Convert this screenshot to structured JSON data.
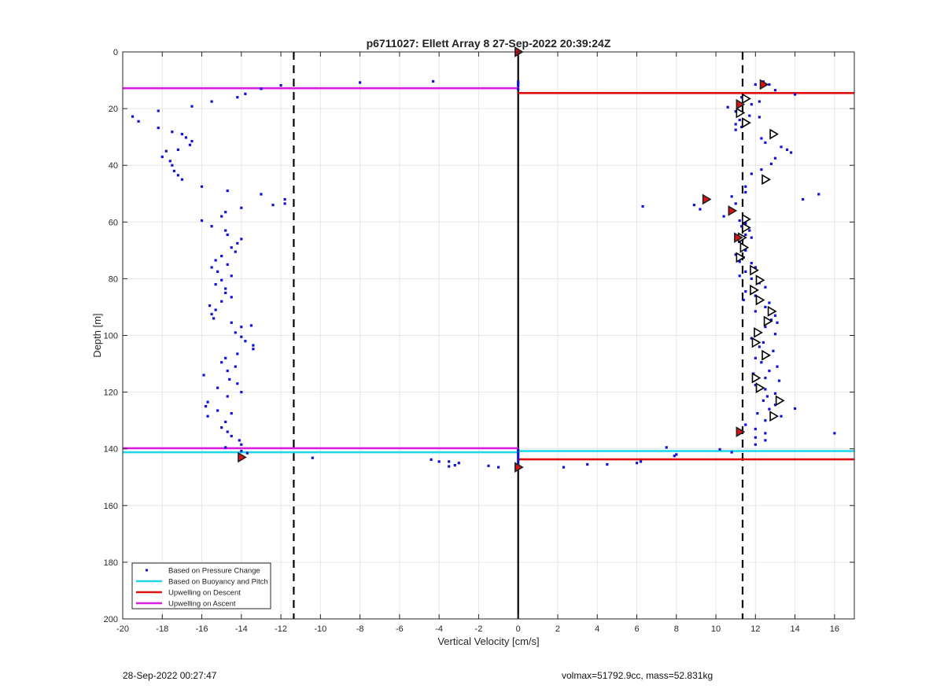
{
  "chart_data": {
    "type": "scatter",
    "title": "p6711027: Ellett Array 8 27-Sep-2022 20:39:24Z",
    "xlabel": "Vertical Velocity [cm/s]",
    "ylabel": "Depth [m]",
    "xlim": [
      -20,
      17
    ],
    "ylim": [
      0,
      200
    ],
    "y_reversed": true,
    "grid": true,
    "x_ticks": [
      -20,
      -18,
      -16,
      -14,
      -12,
      -10,
      -8,
      -6,
      -4,
      -2,
      0,
      2,
      4,
      6,
      8,
      10,
      12,
      14,
      16
    ],
    "y_ticks": [
      0,
      20,
      40,
      60,
      80,
      100,
      120,
      140,
      160,
      180,
      200
    ],
    "legend": {
      "placement": "bottom-left",
      "entries": [
        {
          "label": "Based on Pressure Change",
          "color": "#1010e0",
          "style": "dot"
        },
        {
          "label": "Based on Buoyancy and Pitch",
          "color": "#22d8e8",
          "style": "line"
        },
        {
          "label": "Upwelling on Descent",
          "color": "#dd1111",
          "style": "line"
        },
        {
          "label": "Upwelling on Ascent",
          "color": "#d81ee0",
          "style": "line"
        }
      ]
    },
    "vertical_lines": [
      {
        "x": -11.35,
        "style": "dashed",
        "color": "#000000"
      },
      {
        "x": 0,
        "style": "solid",
        "color": "#000000"
      },
      {
        "x": 11.35,
        "style": "dashed",
        "color": "#000000"
      }
    ],
    "horizontal_lines": [
      {
        "y": 12.8,
        "x_from": -20,
        "x_to": 0,
        "color": "#d81ee0",
        "series": "Upwelling on Ascent"
      },
      {
        "y": 14.5,
        "x_from": 0,
        "x_to": 17,
        "color": "#dd1111",
        "series": "Upwelling on Descent"
      },
      {
        "y": 139.8,
        "x_from": -20,
        "x_to": 0,
        "color": "#d81ee0",
        "series": "Upwelling on Ascent"
      },
      {
        "y": 141.2,
        "x_from": -20,
        "x_to": 0,
        "color": "#22d8e8",
        "series": "Based on Buoyancy and Pitch"
      },
      {
        "y": 140.8,
        "x_from": 0,
        "x_to": 17,
        "color": "#22d8e8",
        "series": "Based on Buoyancy and Pitch"
      },
      {
        "y": 143.7,
        "x_from": 0,
        "x_to": 17,
        "color": "#dd1111",
        "series": "Upwelling on Descent"
      }
    ],
    "series": [
      {
        "name": "Based on Pressure Change",
        "points": [
          [
            -12.0,
            11.8
          ],
          [
            -13.0,
            13.0
          ],
          [
            -13.8,
            14.8
          ],
          [
            -14.2,
            16.0
          ],
          [
            -15.5,
            17.5
          ],
          [
            -16.5,
            19.2
          ],
          [
            -18.2,
            20.8
          ],
          [
            -19.5,
            22.8
          ],
          [
            -19.2,
            24.5
          ],
          [
            -18.2,
            26.8
          ],
          [
            -17.5,
            28.2
          ],
          [
            -17.0,
            29.0
          ],
          [
            -16.8,
            30.2
          ],
          [
            -16.5,
            31.5
          ],
          [
            -16.6,
            32.8
          ],
          [
            -17.2,
            34.5
          ],
          [
            -17.8,
            35.0
          ],
          [
            -18.0,
            37.0
          ],
          [
            -17.6,
            38.5
          ],
          [
            -17.5,
            40.0
          ],
          [
            -17.4,
            42.0
          ],
          [
            -17.2,
            43.5
          ],
          [
            -17.0,
            45.0
          ],
          [
            -16.0,
            47.5
          ],
          [
            -14.7,
            49.0
          ],
          [
            -13.0,
            50.2
          ],
          [
            -11.8,
            52.0
          ],
          [
            -11.8,
            53.5
          ],
          [
            -12.4,
            54.0
          ],
          [
            -14.0,
            55.0
          ],
          [
            -14.8,
            56.5
          ],
          [
            -15.0,
            58.0
          ],
          [
            -16.0,
            59.5
          ],
          [
            -15.5,
            61.5
          ],
          [
            -14.8,
            63.0
          ],
          [
            -14.7,
            64.5
          ],
          [
            -14.0,
            66.0
          ],
          [
            -14.2,
            67.5
          ],
          [
            -14.5,
            69.0
          ],
          [
            -14.3,
            70.5
          ],
          [
            -15.0,
            72.0
          ],
          [
            -15.3,
            73.5
          ],
          [
            -14.7,
            75.0
          ],
          [
            -15.5,
            76.0
          ],
          [
            -15.2,
            77.5
          ],
          [
            -14.5,
            79.0
          ],
          [
            -15.0,
            80.5
          ],
          [
            -15.3,
            82.0
          ],
          [
            -14.8,
            83.5
          ],
          [
            -14.8,
            85.0
          ],
          [
            -14.5,
            86.5
          ],
          [
            -15.0,
            88.0
          ],
          [
            -15.6,
            89.5
          ],
          [
            -15.3,
            91.0
          ],
          [
            -15.5,
            92.5
          ],
          [
            -15.4,
            94.0
          ],
          [
            -14.5,
            95.5
          ],
          [
            -14.0,
            97.0
          ],
          [
            -13.5,
            96.5
          ],
          [
            -14.3,
            99.0
          ],
          [
            -14.0,
            100.5
          ],
          [
            -13.8,
            102.0
          ],
          [
            -13.4,
            103.5
          ],
          [
            -13.4,
            104.8
          ],
          [
            -14.2,
            106.5
          ],
          [
            -14.8,
            108.0
          ],
          [
            -15.0,
            109.5
          ],
          [
            -14.3,
            111.0
          ],
          [
            -14.7,
            112.5
          ],
          [
            -15.9,
            114.0
          ],
          [
            -14.6,
            115.5
          ],
          [
            -14.2,
            117.0
          ],
          [
            -15.2,
            118.5
          ],
          [
            -14.0,
            120.0
          ],
          [
            -14.7,
            121.5
          ],
          [
            -15.7,
            123.5
          ],
          [
            -15.8,
            125.0
          ],
          [
            -15.2,
            126.5
          ],
          [
            -14.5,
            127.5
          ],
          [
            -15.7,
            128.5
          ],
          [
            -14.8,
            130.5
          ],
          [
            -15.0,
            132.5
          ],
          [
            -14.7,
            134.0
          ],
          [
            -14.5,
            135.5
          ],
          [
            -14.1,
            137.0
          ],
          [
            -14.0,
            138.5
          ],
          [
            -14.8,
            139.5
          ],
          [
            -14.0,
            140.8
          ],
          [
            -13.7,
            141.5
          ],
          [
            -14.1,
            143.0
          ],
          [
            -10.4,
            143.2
          ],
          [
            -8.0,
            10.8
          ],
          [
            -4.3,
            10.4
          ],
          [
            -4.4,
            143.8
          ],
          [
            -4.0,
            144.5
          ],
          [
            -3.5,
            144.5
          ],
          [
            -3.0,
            145.0
          ],
          [
            -3.2,
            145.8
          ],
          [
            -3.5,
            146.2
          ],
          [
            -1.5,
            146.0
          ],
          [
            -1.0,
            146.5
          ],
          [
            -0.1,
            145.8
          ],
          [
            0.0,
            146.5
          ],
          [
            2.3,
            146.5
          ],
          [
            3.5,
            145.5
          ],
          [
            4.5,
            145.5
          ],
          [
            6.0,
            145.0
          ],
          [
            6.2,
            144.5
          ],
          [
            7.5,
            139.5
          ],
          [
            7.9,
            142.5
          ],
          [
            8.0,
            142.0
          ],
          [
            10.2,
            140.2
          ],
          [
            10.8,
            141.2
          ],
          [
            6.3,
            54.5
          ],
          [
            8.9,
            54.0
          ],
          [
            9.2,
            55.5
          ],
          [
            10.4,
            58.0
          ],
          [
            11.2,
            59.5
          ],
          [
            11.5,
            60.5
          ],
          [
            11.3,
            61.5
          ],
          [
            11.7,
            63.0
          ],
          [
            11.5,
            64.5
          ],
          [
            11.8,
            65.5
          ],
          [
            11.2,
            67.0
          ],
          [
            11.3,
            68.5
          ],
          [
            11.5,
            70.0
          ],
          [
            11.0,
            71.5
          ],
          [
            11.4,
            72.5
          ],
          [
            11.2,
            74.0
          ],
          [
            11.8,
            74.5
          ],
          [
            12.0,
            76.0
          ],
          [
            11.5,
            77.5
          ],
          [
            11.2,
            79.0
          ],
          [
            11.8,
            80.0
          ],
          [
            12.2,
            81.5
          ],
          [
            12.5,
            83.0
          ],
          [
            11.5,
            84.5
          ],
          [
            12.0,
            86.0
          ],
          [
            11.4,
            87.5
          ],
          [
            12.7,
            88.5
          ],
          [
            12.5,
            90.0
          ],
          [
            12.0,
            91.5
          ],
          [
            13.0,
            93.0
          ],
          [
            12.8,
            94.5
          ],
          [
            13.1,
            95.5
          ],
          [
            12.5,
            97.0
          ],
          [
            12.0,
            98.5
          ],
          [
            13.0,
            99.5
          ],
          [
            11.8,
            101.0
          ],
          [
            12.4,
            102.5
          ],
          [
            12.2,
            104.0
          ],
          [
            12.9,
            105.5
          ],
          [
            12.0,
            108.0
          ],
          [
            12.3,
            109.5
          ],
          [
            13.1,
            111.0
          ],
          [
            12.7,
            112.5
          ],
          [
            11.9,
            113.5
          ],
          [
            12.5,
            115.0
          ],
          [
            13.2,
            116.0
          ],
          [
            12.0,
            117.5
          ],
          [
            12.5,
            119.0
          ],
          [
            13.0,
            120.5
          ],
          [
            12.6,
            121.5
          ],
          [
            12.4,
            123.0
          ],
          [
            13.0,
            124.5
          ],
          [
            12.7,
            126.0
          ],
          [
            12.1,
            127.5
          ],
          [
            13.3,
            128.5
          ],
          [
            12.5,
            130.0
          ],
          [
            11.5,
            131.5
          ],
          [
            12.0,
            133.0
          ],
          [
            12.5,
            134.5
          ],
          [
            12.0,
            136.0
          ],
          [
            12.5,
            137.0
          ],
          [
            12.0,
            138.5
          ],
          [
            14.0,
            125.8
          ],
          [
            16.0,
            134.5
          ],
          [
            14.4,
            52.0
          ],
          [
            15.2,
            50.2
          ],
          [
            10.6,
            19.5
          ],
          [
            11.0,
            21.0
          ],
          [
            11.7,
            22.5
          ],
          [
            11.2,
            24.0
          ],
          [
            11.0,
            25.5
          ],
          [
            11.3,
            26.5
          ],
          [
            11.0,
            27.5
          ],
          [
            12.2,
            23.0
          ],
          [
            12.8,
            28.0
          ],
          [
            12.3,
            30.5
          ],
          [
            12.5,
            32.0
          ],
          [
            13.3,
            33.5
          ],
          [
            13.6,
            34.5
          ],
          [
            13.8,
            35.5
          ],
          [
            13.0,
            37.5
          ],
          [
            12.8,
            39.5
          ],
          [
            12.3,
            41.5
          ],
          [
            11.8,
            43.0
          ],
          [
            11.5,
            47.5
          ],
          [
            11.5,
            49.5
          ],
          [
            10.8,
            51.0
          ],
          [
            11.0,
            53.5
          ],
          [
            12.0,
            11.5
          ],
          [
            12.4,
            10.5
          ],
          [
            12.7,
            11.5
          ],
          [
            13.0,
            13.5
          ],
          [
            14.0,
            15.0
          ],
          [
            12.2,
            17.5
          ],
          [
            11.8,
            18.5
          ],
          [
            11.3,
            16.0
          ],
          [
            0.0,
            10.5
          ],
          [
            0.0,
            11.2
          ],
          [
            0.0,
            12.0
          ],
          [
            0.0,
            13.2
          ],
          [
            0.0,
            140.5
          ],
          [
            0.0,
            141.5
          ],
          [
            0.0,
            142.5
          ],
          [
            0.0,
            143.5
          ],
          [
            0.0,
            144.5
          ],
          [
            0.0,
            145.5
          ]
        ]
      },
      {
        "name": "",
        "marker": "triangle",
        "color": "#000000",
        "points": [
          [
            11.5,
            16.5
          ],
          [
            11.2,
            21.5
          ],
          [
            11.5,
            25.0
          ],
          [
            12.9,
            29.0
          ],
          [
            12.5,
            45.0
          ],
          [
            11.5,
            59.0
          ],
          [
            11.5,
            62.0
          ],
          [
            11.3,
            65.5
          ],
          [
            11.4,
            69.0
          ],
          [
            11.2,
            72.5
          ],
          [
            11.9,
            77.0
          ],
          [
            12.2,
            80.5
          ],
          [
            11.9,
            84.0
          ],
          [
            12.2,
            87.5
          ],
          [
            12.8,
            91.5
          ],
          [
            12.6,
            95.0
          ],
          [
            12.1,
            99.0
          ],
          [
            12.0,
            102.5
          ],
          [
            12.5,
            107.0
          ],
          [
            12.0,
            115.0
          ],
          [
            12.2,
            118.5
          ],
          [
            13.2,
            123.0
          ],
          [
            12.9,
            128.5
          ]
        ]
      },
      {
        "name": "",
        "marker": "filled-triangle",
        "color": "#dd1111",
        "points": [
          [
            12.4,
            11.5
          ],
          [
            11.2,
            18.5
          ],
          [
            9.5,
            52.0
          ],
          [
            10.8,
            56.0
          ],
          [
            11.1,
            65.5
          ],
          [
            11.2,
            134.0
          ],
          [
            -14.0,
            143.0
          ],
          [
            0.0,
            0.0
          ],
          [
            0.0,
            146.5
          ]
        ]
      }
    ]
  },
  "footer": {
    "left_text": "28-Sep-2022 00:27:47",
    "right_text": "volmax=51792.9cc, mass=52.831kg"
  }
}
